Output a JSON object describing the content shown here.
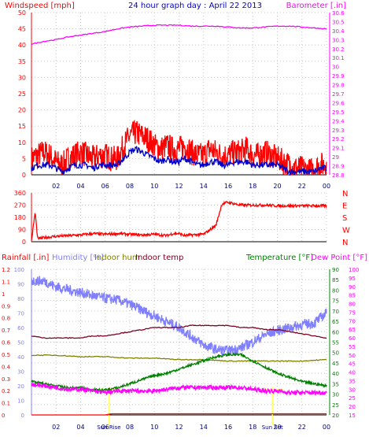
{
  "colors": {
    "background": "#ffffff",
    "grid": "#c8c8c8",
    "axis": "#000000",
    "windspeed": "#ff0000",
    "windspeed_avg": "#0000cc",
    "barometer": "#ff00ff",
    "direction": "#ff0000",
    "rainfall": "#ff0000",
    "humidity": "#8080ff",
    "indoor_hum": "#808000",
    "indoor_temp": "#800020",
    "temperature": "#008000",
    "dew_point": "#ff00ff",
    "sun_marker": "#ffff66",
    "time_label": "#000080",
    "left_ticks_bottom": "#8080ff"
  },
  "panel1": {
    "title": "24 hour graph day : April 22 2013",
    "left_label": "Windspeed [mph]",
    "right_label": "Barometer [.in]",
    "left_ticks": [
      "0",
      "5",
      "10",
      "15",
      "20",
      "25",
      "30",
      "35",
      "40",
      "45",
      "50"
    ],
    "right_ticks": [
      "28.8",
      "28.9",
      "29",
      "29.1",
      "29.2",
      "29.3",
      "29.4",
      "29.5",
      "29.6",
      "29.7",
      "29.8",
      "29.9",
      "30",
      "30.1",
      "30.2",
      "30.3",
      "30.4",
      "30.5",
      "30.6"
    ]
  },
  "panel2": {
    "left_ticks": [
      "0",
      "90",
      "180",
      "270",
      "360"
    ],
    "direction_labels": [
      "N",
      "W",
      "S",
      "E",
      "N"
    ]
  },
  "panel3": {
    "labels": {
      "rainfall": "Rainfall [.in]",
      "humidity": "Humidity [%]",
      "indoor_hum": "Indoor hum",
      "indoor_temp": "Indoor temp",
      "temperature": "Temperature [°F]",
      "dew_point": "Dew Point [°F]"
    },
    "rain_ticks": [
      "0",
      "0.1",
      "0.2",
      "0.3",
      "0.4",
      "0.5",
      "0.6",
      "0.7",
      "0.8",
      "0.9",
      "1",
      "1.1",
      "1.2"
    ],
    "humidity_ticks": [
      "0",
      "10",
      "20",
      "30",
      "40",
      "50",
      "60",
      "70",
      "80",
      "90",
      "100"
    ],
    "temp_ticks": [
      "20",
      "25",
      "30",
      "35",
      "40",
      "45",
      "50",
      "55",
      "60",
      "65",
      "70",
      "75",
      "80",
      "85",
      "90"
    ],
    "dew_ticks": [
      "15",
      "20",
      "25",
      "30",
      "35",
      "40",
      "45",
      "50",
      "55",
      "60",
      "65",
      "70",
      "75",
      "80",
      "85",
      "90",
      "95",
      "100"
    ],
    "sunrise_label": "Sun Rise",
    "sunset_label": "Sun Set"
  },
  "time_ticks": [
    "02",
    "04",
    "06",
    "08",
    "10",
    "12",
    "14",
    "16",
    "18",
    "20",
    "22",
    "00"
  ],
  "chart_data": [
    {
      "type": "line",
      "title": "24 hour graph day : April 22 2013",
      "x_unit": "hours",
      "xlim": [
        0,
        24
      ],
      "ylim_left": [
        0,
        50
      ],
      "ylim_right": [
        28.8,
        30.6
      ],
      "series": [
        {
          "name": "Windspeed [mph]",
          "axis": "left",
          "x": [
            0,
            0.5,
            1,
            1.5,
            2,
            2.5,
            3,
            3.5,
            4,
            4.5,
            5,
            5.5,
            6,
            6.5,
            7,
            7.5,
            8,
            8.5,
            9,
            9.5,
            10,
            10.5,
            11,
            11.5,
            12,
            12.5,
            13,
            13.5,
            14,
            14.5,
            15,
            15.5,
            16,
            16.5,
            17,
            17.5,
            18,
            18.5,
            19,
            19.5,
            20,
            20.5,
            21,
            21.5,
            22,
            22.5,
            23,
            23.5,
            24
          ],
          "values": [
            5,
            6,
            7,
            6,
            4,
            3,
            5,
            6,
            7,
            6,
            5,
            6,
            6,
            5,
            5,
            9,
            12,
            13,
            12,
            11,
            9,
            8,
            9,
            8,
            8,
            9,
            7,
            6,
            6,
            8,
            7,
            6,
            6,
            7,
            7,
            8,
            6,
            6,
            7,
            6,
            5,
            4,
            3,
            2,
            2,
            1,
            2,
            3,
            3
          ]
        },
        {
          "name": "Windspeed average",
          "axis": "left",
          "x": [
            0,
            0.5,
            1,
            1.5,
            2,
            2.5,
            3,
            3.5,
            4,
            4.5,
            5,
            5.5,
            6,
            6.5,
            7,
            7.5,
            8,
            8.5,
            9,
            9.5,
            10,
            10.5,
            11,
            11.5,
            12,
            12.5,
            13,
            13.5,
            14,
            14.5,
            15,
            15.5,
            16,
            16.5,
            17,
            17.5,
            18,
            18.5,
            19,
            19.5,
            20,
            20.5,
            21,
            21.5,
            22,
            22.5,
            23,
            23.5,
            24
          ],
          "values": [
            2,
            3,
            3,
            3,
            2,
            1,
            2,
            3,
            3,
            3,
            2,
            3,
            3,
            3,
            3,
            5,
            7,
            8,
            7,
            6,
            5,
            4,
            5,
            4,
            4,
            5,
            4,
            3,
            3,
            4,
            4,
            3,
            3,
            4,
            4,
            4,
            3,
            3,
            3,
            3,
            3,
            2,
            1,
            1,
            1,
            1,
            1,
            2,
            2
          ]
        },
        {
          "name": "Barometer [.in]",
          "axis": "right",
          "x": [
            0,
            1,
            2,
            3,
            4,
            5,
            6,
            7,
            8,
            9,
            10,
            11,
            12,
            13,
            14,
            15,
            16,
            17,
            18,
            19,
            20,
            21,
            22,
            23,
            24
          ],
          "values": [
            30.25,
            30.28,
            30.3,
            30.33,
            30.35,
            30.37,
            30.39,
            30.42,
            30.44,
            30.45,
            30.46,
            30.46,
            30.46,
            30.45,
            30.45,
            30.45,
            30.44,
            30.43,
            30.43,
            30.44,
            30.45,
            30.45,
            30.44,
            30.43,
            30.42
          ]
        }
      ]
    },
    {
      "type": "line",
      "title": "",
      "x_unit": "hours",
      "xlim": [
        0,
        24
      ],
      "ylim": [
        0,
        360
      ],
      "series": [
        {
          "name": "Wind direction",
          "x": [
            0,
            0.3,
            0.5,
            1,
            2,
            3,
            4,
            5,
            6,
            7,
            8,
            9,
            10,
            11,
            11.5,
            12,
            12.5,
            13,
            14,
            15,
            15.5,
            16,
            17,
            18,
            19,
            20,
            21,
            22,
            23,
            24
          ],
          "values": [
            5,
            220,
            20,
            30,
            40,
            45,
            50,
            60,
            55,
            60,
            55,
            50,
            55,
            45,
            60,
            60,
            45,
            50,
            55,
            120,
            280,
            290,
            270,
            270,
            270,
            265,
            265,
            265,
            265,
            265
          ]
        }
      ]
    },
    {
      "type": "line",
      "title": "",
      "x_unit": "hours",
      "xlim": [
        0,
        24
      ],
      "ylim_temperature": [
        20,
        90
      ],
      "ylim_humidity": [
        0,
        100
      ],
      "series": [
        {
          "name": "Humidity [%]",
          "axis": "humidity",
          "x": [
            0,
            1,
            2,
            3,
            4,
            5,
            6,
            7,
            8,
            9,
            10,
            11,
            12,
            13,
            14,
            15,
            16,
            17,
            18,
            19,
            20,
            21,
            22,
            23,
            24
          ],
          "values": [
            92,
            92,
            88,
            86,
            84,
            82,
            80,
            79,
            76,
            72,
            68,
            64,
            60,
            54,
            48,
            45,
            44,
            46,
            50,
            55,
            58,
            60,
            62,
            63,
            70
          ]
        },
        {
          "name": "Indoor hum",
          "axis": "humidity",
          "x": [
            0,
            2,
            4,
            6,
            8,
            10,
            12,
            14,
            16,
            18,
            20,
            22,
            24
          ],
          "values": [
            41,
            41,
            40,
            40,
            39,
            39,
            38,
            38,
            37,
            37,
            37,
            37,
            38
          ]
        },
        {
          "name": "Indoor temp",
          "axis": "temperature",
          "x": [
            0,
            1,
            2,
            3,
            4,
            5,
            6,
            7,
            8,
            9,
            10,
            11,
            12,
            13,
            14,
            15,
            16,
            17,
            18,
            19,
            20,
            21,
            22,
            23,
            24
          ],
          "values": [
            58,
            57,
            57,
            57,
            57,
            58,
            58,
            59,
            60,
            61,
            62,
            62,
            62,
            63,
            63,
            63,
            63,
            62,
            62,
            61,
            61,
            60,
            59,
            58,
            57
          ]
        },
        {
          "name": "Temperature [°F]",
          "axis": "temperature",
          "x": [
            0,
            1,
            2,
            3,
            4,
            5,
            6,
            7,
            8,
            9,
            10,
            11,
            12,
            13,
            14,
            15,
            16,
            17,
            18,
            19,
            20,
            21,
            22,
            23,
            24
          ],
          "values": [
            36,
            35,
            34,
            33,
            33,
            32,
            32,
            33,
            35,
            37,
            39,
            40,
            42,
            44,
            46,
            48,
            49,
            49,
            46,
            43,
            40,
            38,
            36,
            35,
            34
          ]
        },
        {
          "name": "Dew Point [°F]",
          "axis": "dew",
          "x": [
            0,
            1,
            2,
            3,
            4,
            5,
            6,
            7,
            8,
            9,
            10,
            11,
            12,
            13,
            14,
            15,
            16,
            17,
            18,
            19,
            20,
            21,
            22,
            23,
            24
          ],
          "values": [
            33,
            32,
            31,
            30,
            30,
            29,
            28,
            29,
            29,
            29,
            29,
            30,
            31,
            31,
            31,
            31,
            31,
            31,
            30,
            29,
            29,
            28,
            28,
            28,
            28
          ]
        },
        {
          "name": "Rainfall [.in]",
          "axis": "rain",
          "x": [
            0,
            6,
            6.5,
            24
          ],
          "values": [
            0,
            0,
            0.01,
            0.01
          ]
        }
      ]
    }
  ]
}
